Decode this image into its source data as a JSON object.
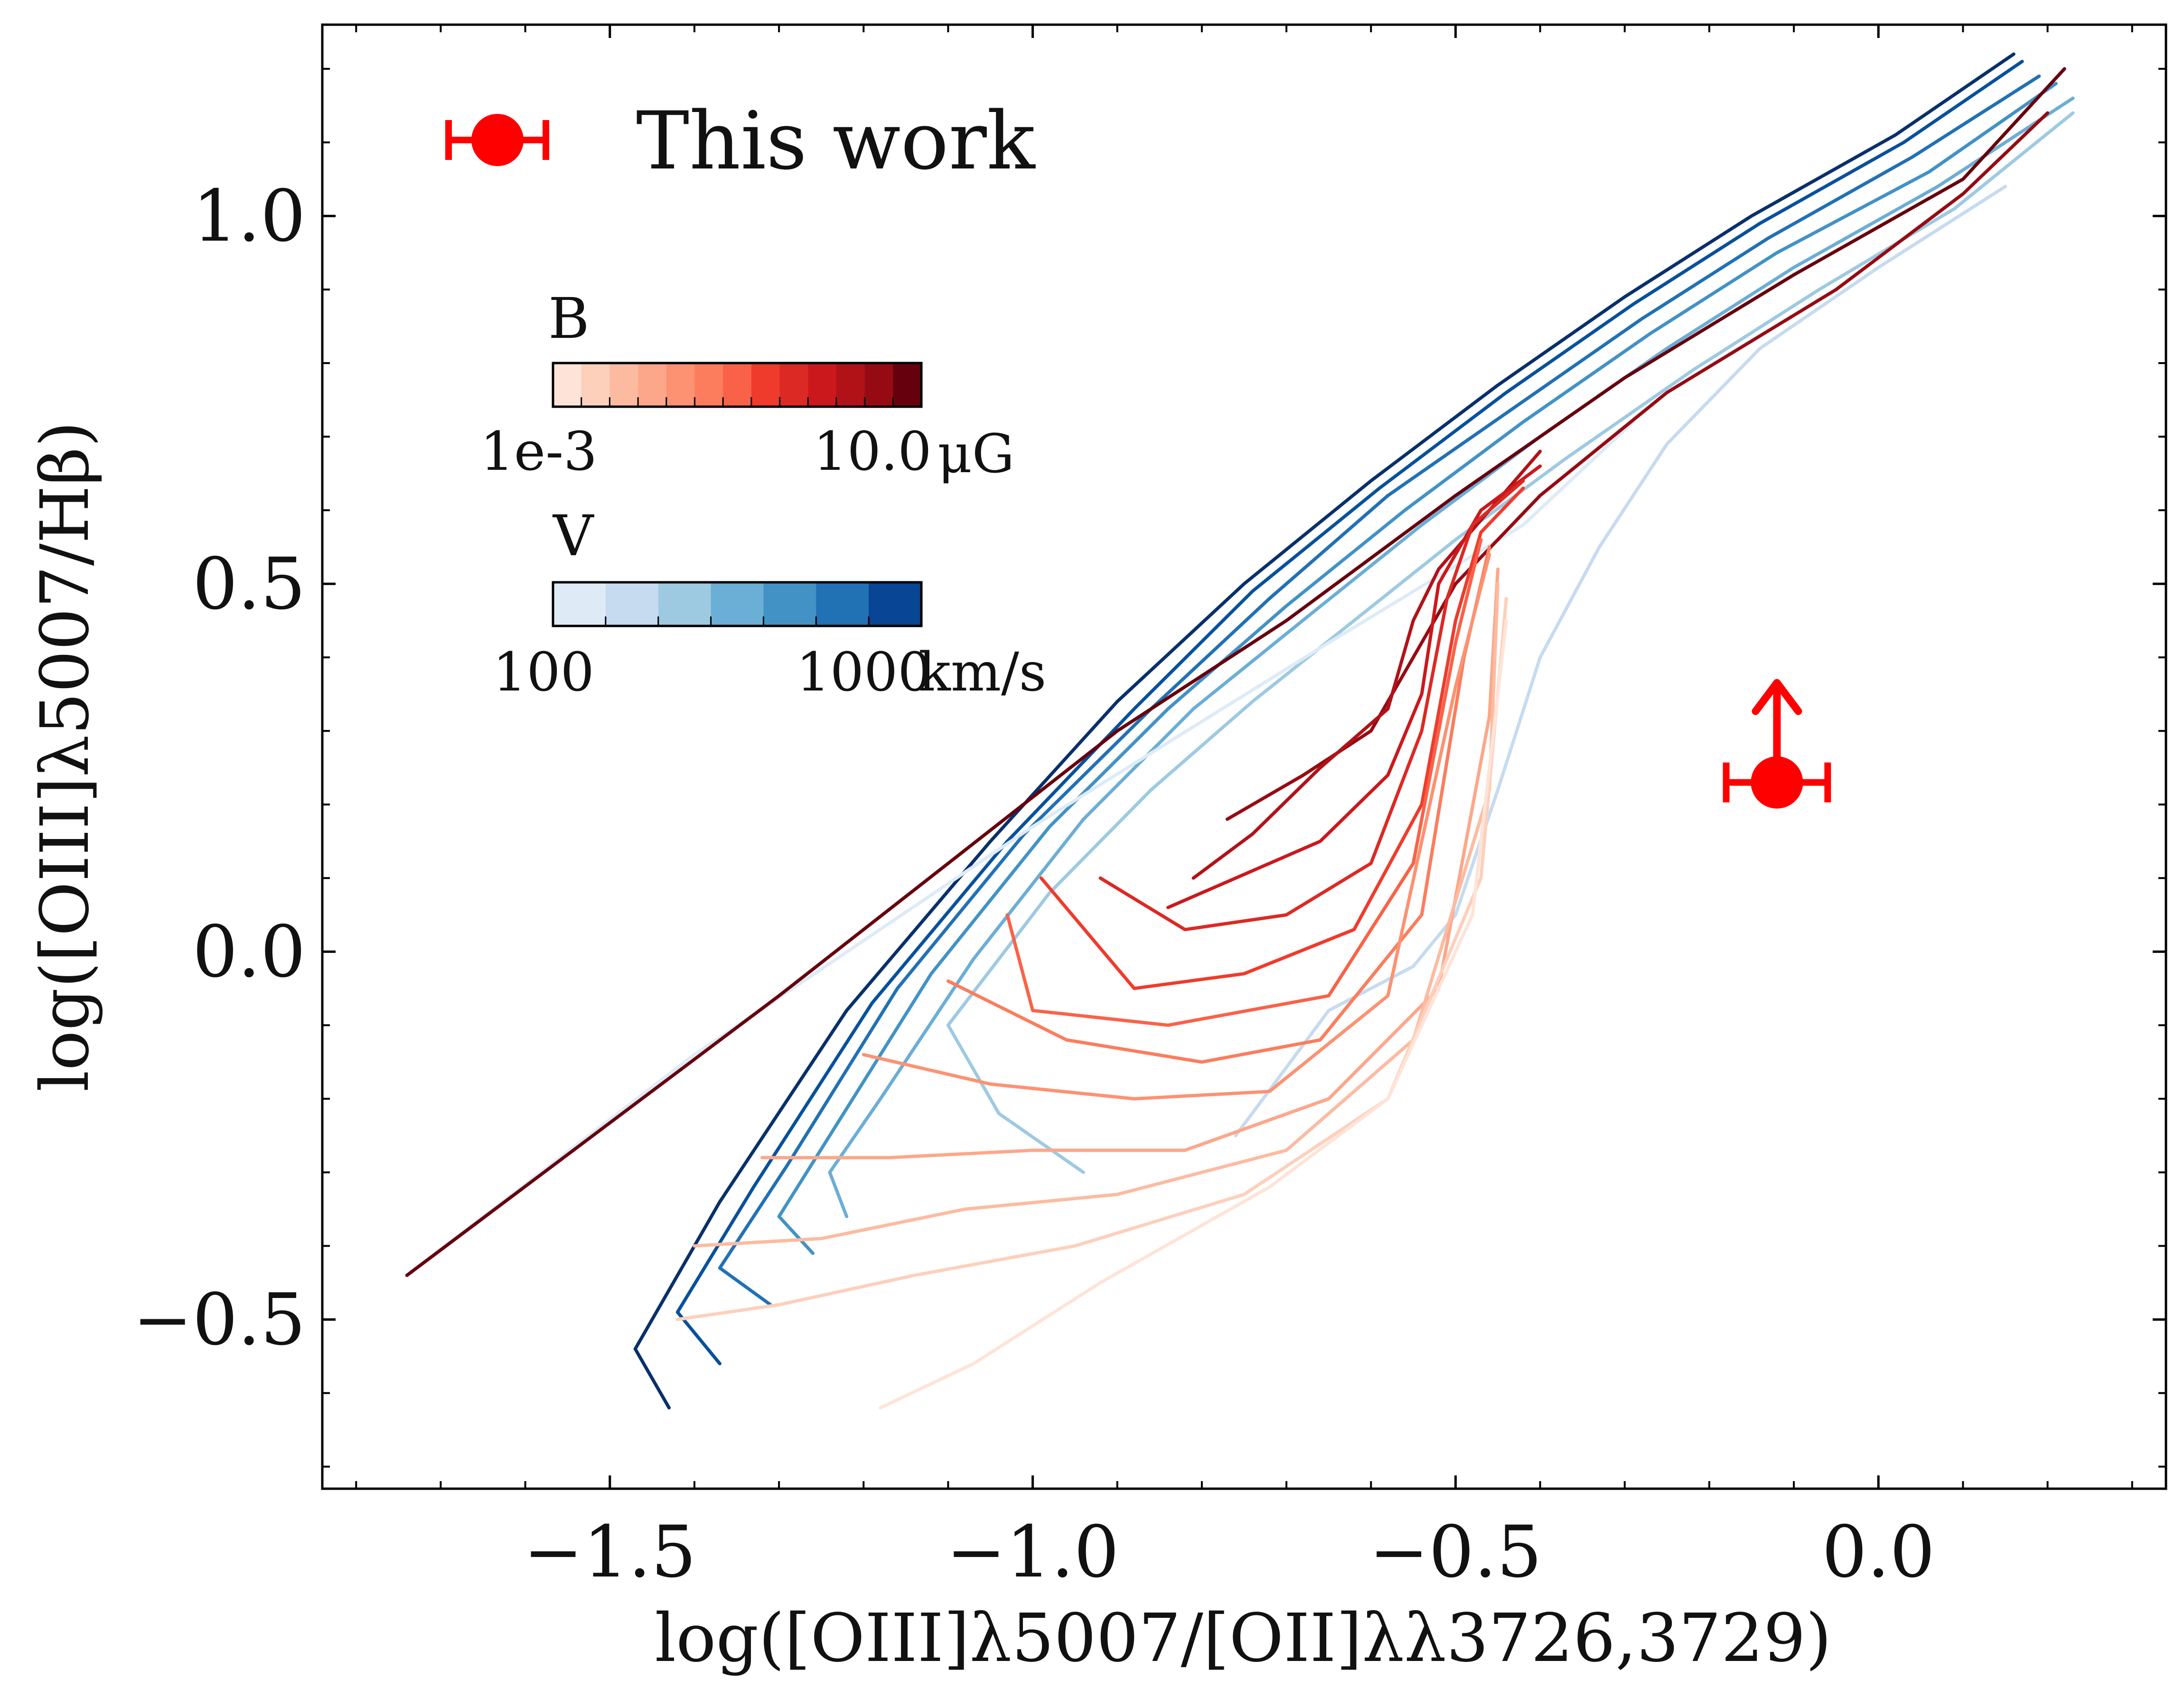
{
  "chart_data": {
    "type": "line",
    "xlabel": "log([OIII]λ5007/[OII]λλ3726,3729)",
    "ylabel": "log([OIII]λ5007/Hβ)",
    "xlim": [
      -1.84,
      0.34
    ],
    "ylim": [
      -0.73,
      1.26
    ],
    "x_ticks": [
      -1.5,
      -1.0,
      -0.5,
      0.0
    ],
    "x_tick_labels": [
      "−1.5",
      "−1.0",
      "−0.5",
      "0.0"
    ],
    "y_ticks": [
      -0.5,
      0.0,
      0.5,
      1.0
    ],
    "y_tick_labels": [
      "−0.5",
      "0.0",
      "0.5",
      "1.0"
    ],
    "grid": false,
    "legend": {
      "position": "top-left",
      "entries": [
        {
          "label": "This work",
          "color": "#ff0000",
          "marker": "circle-with-xerror"
        }
      ]
    },
    "colorbars": [
      {
        "title": "B",
        "label_left": "1e-3",
        "label_right": "10.0",
        "unit": "μG",
        "colors": [
          "#fee4d8",
          "#fdd0bc",
          "#fcbba1",
          "#fca78a",
          "#fc9272",
          "#fb7d5d",
          "#f96248",
          "#ef3b2c",
          "#dc2924",
          "#cb181d",
          "#b11218",
          "#960b13",
          "#67000d"
        ]
      },
      {
        "title": "V",
        "label_left": "100",
        "label_right": "1000",
        "unit": "km/s",
        "colors": [
          "#deebf7",
          "#c6dbef",
          "#9ecae1",
          "#6baed6",
          "#4292c6",
          "#2171b5",
          "#084594"
        ]
      }
    ],
    "observation": {
      "name": "This work",
      "x": -0.12,
      "y": 0.23,
      "xerr": 0.06,
      "lower_limit_y": true,
      "color": "#ff0000"
    },
    "series": [
      {
        "group": "V",
        "color": "#08306b",
        "x": [
          -1.43,
          -1.47,
          -1.37,
          -1.22,
          -1.05,
          -0.9,
          -0.75,
          -0.6,
          -0.45,
          -0.3,
          -0.15,
          0.02,
          0.16
        ],
        "y": [
          -0.62,
          -0.54,
          -0.34,
          -0.08,
          0.15,
          0.34,
          0.5,
          0.64,
          0.77,
          0.89,
          1.0,
          1.11,
          1.22
        ]
      },
      {
        "group": "V",
        "color": "#08519c",
        "x": [
          -1.37,
          -1.42,
          -1.33,
          -1.19,
          -1.03,
          -0.88,
          -0.74,
          -0.59,
          -0.44,
          -0.29,
          -0.14,
          0.03,
          0.17
        ],
        "y": [
          -0.56,
          -0.49,
          -0.32,
          -0.07,
          0.15,
          0.33,
          0.49,
          0.63,
          0.76,
          0.88,
          0.99,
          1.1,
          1.21
        ]
      },
      {
        "group": "V",
        "color": "#2171b5",
        "x": [
          -1.31,
          -1.37,
          -1.29,
          -1.16,
          -1.01,
          -0.86,
          -0.72,
          -0.58,
          -0.43,
          -0.28,
          -0.13,
          0.04,
          0.19
        ],
        "y": [
          -0.48,
          -0.43,
          -0.29,
          -0.05,
          0.16,
          0.33,
          0.48,
          0.62,
          0.74,
          0.86,
          0.97,
          1.08,
          1.19
        ]
      },
      {
        "group": "V",
        "color": "#4292c6",
        "x": [
          -1.26,
          -1.3,
          -1.24,
          -1.12,
          -0.98,
          -0.84,
          -0.7,
          -0.56,
          -0.42,
          -0.27,
          -0.12,
          0.06,
          0.21
        ],
        "y": [
          -0.41,
          -0.36,
          -0.25,
          -0.03,
          0.17,
          0.33,
          0.47,
          0.6,
          0.72,
          0.84,
          0.95,
          1.06,
          1.18
        ]
      },
      {
        "group": "V",
        "color": "#6baed6",
        "x": [
          -1.22,
          -1.24,
          -1.18,
          -1.07,
          -0.94,
          -0.81,
          -0.67,
          -0.54,
          -0.4,
          -0.25,
          -0.1,
          0.07,
          0.23
        ],
        "y": [
          -0.36,
          -0.3,
          -0.2,
          -0.01,
          0.18,
          0.33,
          0.46,
          0.58,
          0.7,
          0.82,
          0.93,
          1.04,
          1.16
        ]
      },
      {
        "group": "V",
        "color": "#9ecae1",
        "x": [
          -0.94,
          -1.04,
          -1.1,
          -0.98,
          -0.86,
          -0.74,
          -0.62,
          -0.5,
          -0.37,
          -0.22,
          -0.07,
          0.09,
          0.23
        ],
        "y": [
          -0.3,
          -0.22,
          -0.1,
          0.08,
          0.22,
          0.34,
          0.45,
          0.56,
          0.67,
          0.79,
          0.9,
          1.01,
          1.14
        ]
      },
      {
        "group": "V",
        "color": "#c6dbef",
        "x": [
          -0.76,
          -0.65,
          -0.55,
          -0.5,
          -0.45,
          -0.4,
          -0.33,
          -0.25,
          -0.14,
          0.0,
          0.15
        ],
        "y": [
          -0.25,
          -0.08,
          -0.02,
          0.05,
          0.22,
          0.4,
          0.55,
          0.69,
          0.82,
          0.93,
          1.04
        ]
      },
      {
        "group": "V",
        "color": "#deebf7",
        "x": [
          -1.74,
          -1.4,
          -1.0,
          -0.65,
          -0.42,
          -0.29
        ],
        "y": [
          -0.44,
          -0.14,
          0.17,
          0.42,
          0.58,
          0.72
        ]
      },
      {
        "group": "B",
        "color": "#67000d",
        "x": [
          -1.74,
          -1.3,
          -0.9,
          -0.7,
          -0.5,
          -0.3,
          -0.1,
          0.1,
          0.22
        ],
        "y": [
          -0.44,
          -0.06,
          0.3,
          0.45,
          0.62,
          0.78,
          0.92,
          1.05,
          1.2
        ]
      },
      {
        "group": "B",
        "color": "#960b13",
        "x": [
          -0.77,
          -0.68,
          -0.6,
          -0.56,
          -0.5,
          -0.4,
          -0.25,
          -0.05,
          0.1,
          0.2
        ],
        "y": [
          0.18,
          0.24,
          0.3,
          0.38,
          0.5,
          0.62,
          0.76,
          0.9,
          1.03,
          1.14
        ]
      },
      {
        "group": "B",
        "color": "#b11218",
        "x": [
          -0.81,
          -0.74,
          -0.66,
          -0.58,
          -0.55,
          -0.52,
          -0.46,
          -0.4
        ],
        "y": [
          0.1,
          0.16,
          0.25,
          0.33,
          0.45,
          0.52,
          0.6,
          0.68
        ]
      },
      {
        "group": "B",
        "color": "#cb181d",
        "x": [
          -0.84,
          -0.76,
          -0.66,
          -0.58,
          -0.54,
          -0.52,
          -0.47,
          -0.4
        ],
        "y": [
          0.06,
          0.1,
          0.15,
          0.24,
          0.35,
          0.5,
          0.6,
          0.66
        ]
      },
      {
        "group": "B",
        "color": "#dc2924",
        "x": [
          -0.92,
          -0.82,
          -0.7,
          -0.6,
          -0.54,
          -0.51,
          -0.48,
          -0.42
        ],
        "y": [
          0.1,
          0.03,
          0.05,
          0.12,
          0.3,
          0.48,
          0.58,
          0.64
        ]
      },
      {
        "group": "B",
        "color": "#ef3b2c",
        "x": [
          -0.99,
          -0.88,
          -0.75,
          -0.62,
          -0.54,
          -0.5,
          -0.47,
          -0.42
        ],
        "y": [
          0.1,
          -0.05,
          -0.03,
          0.03,
          0.2,
          0.45,
          0.57,
          0.63
        ]
      },
      {
        "group": "B",
        "color": "#f96248",
        "x": [
          -1.03,
          -1.0,
          -0.84,
          -0.65,
          -0.55,
          -0.5,
          -0.47
        ],
        "y": [
          0.05,
          -0.08,
          -0.1,
          -0.06,
          0.12,
          0.42,
          0.56
        ]
      },
      {
        "group": "B",
        "color": "#fb7d5d",
        "x": [
          -1.1,
          -0.96,
          -0.8,
          -0.66,
          -0.54,
          -0.49,
          -0.46
        ],
        "y": [
          -0.04,
          -0.12,
          -0.15,
          -0.12,
          0.05,
          0.4,
          0.55
        ]
      },
      {
        "group": "B",
        "color": "#fc9272",
        "x": [
          -1.2,
          -1.05,
          -0.88,
          -0.72,
          -0.58,
          -0.5,
          -0.46
        ],
        "y": [
          -0.14,
          -0.18,
          -0.2,
          -0.19,
          -0.06,
          0.36,
          0.54
        ]
      },
      {
        "group": "B",
        "color": "#fca78a",
        "x": [
          -1.32,
          -1.17,
          -1.0,
          -0.82,
          -0.65,
          -0.52,
          -0.46,
          -0.45
        ],
        "y": [
          -0.28,
          -0.28,
          -0.27,
          -0.27,
          -0.2,
          -0.05,
          0.32,
          0.52
        ]
      },
      {
        "group": "B",
        "color": "#fcbba1",
        "x": [
          -1.4,
          -1.25,
          -1.08,
          -0.9,
          -0.7,
          -0.55,
          -0.46,
          -0.45
        ],
        "y": [
          -0.4,
          -0.39,
          -0.35,
          -0.33,
          -0.27,
          -0.12,
          0.22,
          0.5
        ]
      },
      {
        "group": "B",
        "color": "#fdd0bc",
        "x": [
          -1.42,
          -1.3,
          -1.14,
          -0.95,
          -0.75,
          -0.58,
          -0.47,
          -0.44
        ],
        "y": [
          -0.5,
          -0.48,
          -0.44,
          -0.4,
          -0.33,
          -0.2,
          0.1,
          0.48
        ]
      },
      {
        "group": "B",
        "color": "#fee4d8",
        "x": [
          -1.18,
          -1.07,
          -0.92,
          -0.72,
          -0.58,
          -0.48,
          -0.44
        ],
        "y": [
          -0.62,
          -0.56,
          -0.45,
          -0.32,
          -0.2,
          0.05,
          0.45
        ]
      }
    ]
  }
}
